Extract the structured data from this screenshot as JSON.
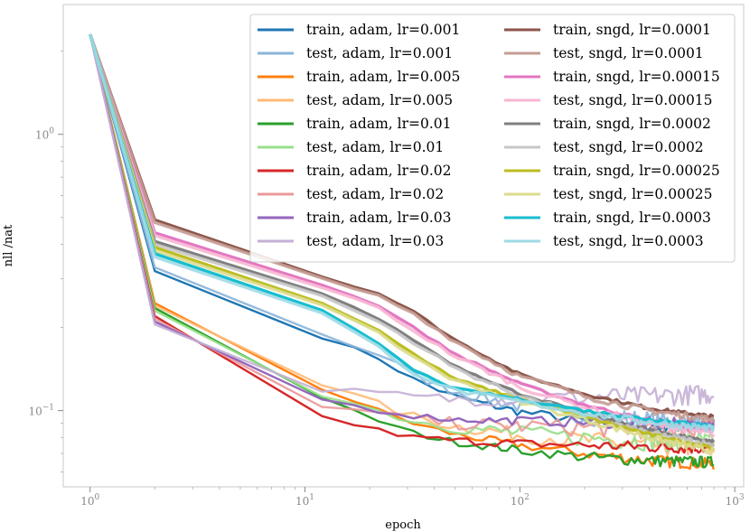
{
  "chart_data": {
    "type": "line",
    "xscale": "log",
    "yscale": "log",
    "xlabel": "epoch",
    "ylabel": "nll /nat",
    "xlim": [
      0.75,
      1100
    ],
    "ylim": [
      0.053,
      2.95
    ],
    "xticks": [
      {
        "value": 1,
        "label": "10^0"
      },
      {
        "value": 10,
        "label": "10^1"
      },
      {
        "value": 100,
        "label": "10^2"
      },
      {
        "value": 1000,
        "label": "10^3"
      }
    ],
    "yticks": [
      {
        "value": 0.1,
        "label": "10^-1"
      },
      {
        "value": 1,
        "label": "10^0"
      }
    ],
    "legend_position": "top-right",
    "epochs": [
      1,
      2,
      12,
      22,
      32,
      50,
      100,
      200,
      400,
      800
    ],
    "series": [
      {
        "name": "train, adam, lr=0.001",
        "color": "#1f77b4",
        "values": [
          2.3,
          0.32,
          0.185,
          0.155,
          0.13,
          0.112,
          0.099,
          0.092,
          0.088,
          0.087
        ]
      },
      {
        "name": "test, adam, lr=0.001",
        "color": "#8bb5d9",
        "values": [
          2.3,
          0.33,
          0.19,
          0.16,
          0.135,
          0.118,
          0.104,
          0.096,
          0.092,
          0.09
        ]
      },
      {
        "name": "train, adam, lr=0.005",
        "color": "#ff7f0e",
        "values": [
          2.3,
          0.245,
          0.12,
          0.1,
          0.09,
          0.082,
          0.075,
          0.07,
          0.066,
          0.064
        ]
      },
      {
        "name": "test, adam, lr=0.005",
        "color": "#ffbb78",
        "values": [
          2.3,
          0.24,
          0.125,
          0.105,
          0.095,
          0.088,
          0.082,
          0.078,
          0.075,
          0.074
        ]
      },
      {
        "name": "train, adam, lr=0.01",
        "color": "#2ca02c",
        "values": [
          2.3,
          0.235,
          0.11,
          0.092,
          0.083,
          0.077,
          0.072,
          0.068,
          0.066,
          0.065
        ]
      },
      {
        "name": "test, adam, lr=0.01",
        "color": "#98df8a",
        "values": [
          2.3,
          0.23,
          0.115,
          0.1,
          0.092,
          0.087,
          0.083,
          0.08,
          0.078,
          0.077
        ]
      },
      {
        "name": "train, adam, lr=0.02",
        "color": "#d62728",
        "values": [
          2.3,
          0.22,
          0.095,
          0.085,
          0.08,
          0.078,
          0.076,
          0.075,
          0.074,
          0.073
        ]
      },
      {
        "name": "test, adam, lr=0.02",
        "color": "#ea9999",
        "values": [
          2.3,
          0.215,
          0.105,
          0.097,
          0.093,
          0.09,
          0.088,
          0.087,
          0.086,
          0.086
        ]
      },
      {
        "name": "train, adam, lr=0.03",
        "color": "#9467bd",
        "values": [
          2.3,
          0.21,
          0.11,
          0.1,
          0.096,
          0.093,
          0.092,
          0.091,
          0.09,
          0.09
        ]
      },
      {
        "name": "test, adam, lr=0.03",
        "color": "#c5b0d5",
        "values": [
          2.3,
          0.205,
          0.12,
          0.115,
          0.112,
          0.11,
          0.11,
          0.112,
          0.113,
          0.115
        ]
      },
      {
        "name": "train, sngd, lr=0.0001",
        "color": "#8c564b",
        "values": [
          2.3,
          0.49,
          0.305,
          0.265,
          0.228,
          0.18,
          0.135,
          0.115,
          0.102,
          0.095
        ]
      },
      {
        "name": "test, sngd, lr=0.0001",
        "color": "#c49c94",
        "values": [
          2.3,
          0.48,
          0.3,
          0.26,
          0.225,
          0.178,
          0.133,
          0.113,
          0.1,
          0.093
        ]
      },
      {
        "name": "train, sngd, lr=0.00015",
        "color": "#e377c2",
        "values": [
          2.3,
          0.44,
          0.285,
          0.24,
          0.2,
          0.16,
          0.125,
          0.105,
          0.092,
          0.084
        ]
      },
      {
        "name": "test, sngd, lr=0.00015",
        "color": "#f7b6d2",
        "values": [
          2.3,
          0.43,
          0.28,
          0.235,
          0.195,
          0.157,
          0.122,
          0.103,
          0.09,
          0.082
        ]
      },
      {
        "name": "train, sngd, lr=0.0002",
        "color": "#7f7f7f",
        "values": [
          2.3,
          0.41,
          0.265,
          0.215,
          0.18,
          0.145,
          0.115,
          0.098,
          0.085,
          0.077
        ]
      },
      {
        "name": "test, sngd, lr=0.0002",
        "color": "#c7c7c7",
        "values": [
          2.3,
          0.4,
          0.26,
          0.21,
          0.177,
          0.142,
          0.113,
          0.096,
          0.083,
          0.075
        ]
      },
      {
        "name": "train, sngd, lr=0.00025",
        "color": "#bcbd22",
        "values": [
          2.3,
          0.39,
          0.245,
          0.195,
          0.16,
          0.13,
          0.11,
          0.095,
          0.082,
          0.073
        ]
      },
      {
        "name": "test, sngd, lr=0.00025",
        "color": "#dbdb8d",
        "values": [
          2.3,
          0.38,
          0.24,
          0.19,
          0.157,
          0.128,
          0.108,
          0.093,
          0.08,
          0.071
        ]
      },
      {
        "name": "train, sngd, lr=0.0003",
        "color": "#17becf",
        "values": [
          2.3,
          0.37,
          0.23,
          0.175,
          0.14,
          0.12,
          0.11,
          0.1,
          0.093,
          0.088
        ]
      },
      {
        "name": "test, sngd, lr=0.0003",
        "color": "#9edae5",
        "values": [
          2.3,
          0.36,
          0.225,
          0.17,
          0.137,
          0.118,
          0.108,
          0.098,
          0.091,
          0.086
        ]
      }
    ]
  }
}
